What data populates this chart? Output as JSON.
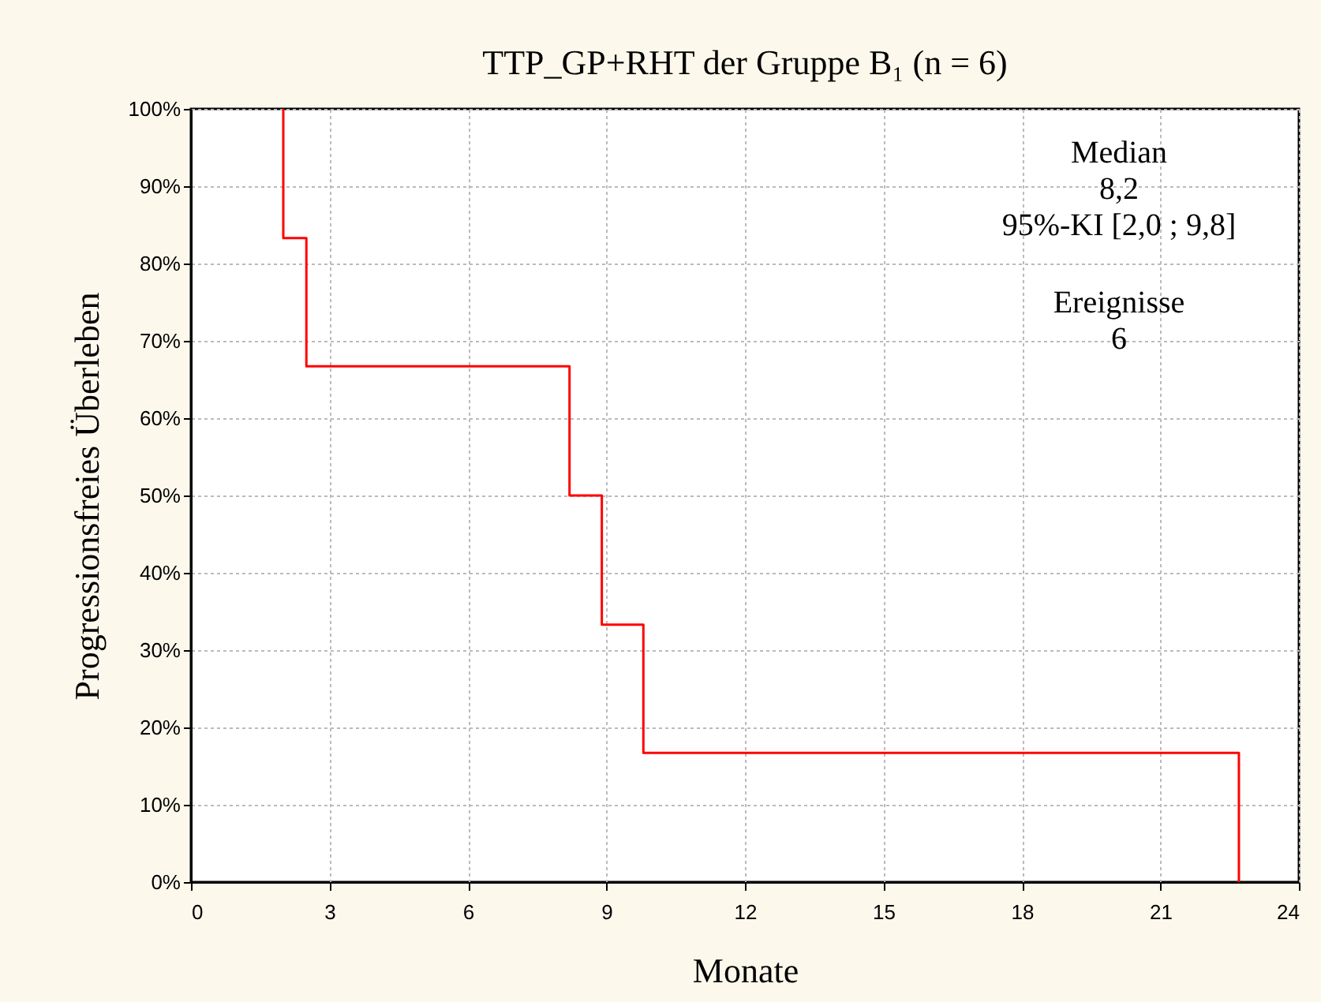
{
  "chart_data": {
    "type": "step",
    "title": "TTP_GP+RHT der Gruppe B₁ (n = 6)",
    "xlabel": "Monate",
    "ylabel": "Progressionsfreies Überleben",
    "x": [
      2.0,
      2.0,
      2.5,
      8.2,
      8.9,
      9.8,
      22.7
    ],
    "series": [
      {
        "color": "#ff0000",
        "values": [
          100,
          83.3,
          66.7,
          50,
          33.3,
          16.7,
          0
        ]
      }
    ],
    "xlim": [
      0,
      24
    ],
    "xticks": [
      0,
      3,
      6,
      9,
      12,
      15,
      18,
      21,
      24
    ],
    "ylim": [
      0,
      100
    ],
    "yticks": [
      {
        "value": 0,
        "label": "0%"
      },
      {
        "value": 10,
        "label": "10%"
      },
      {
        "value": 20,
        "label": "20%"
      },
      {
        "value": 30,
        "label": "30%"
      },
      {
        "value": 40,
        "label": "40%"
      },
      {
        "value": 50,
        "label": "50%"
      },
      {
        "value": 60,
        "label": "60%"
      },
      {
        "value": 70,
        "label": "70%"
      },
      {
        "value": 80,
        "label": "80%"
      },
      {
        "value": 90,
        "label": "90%"
      },
      {
        "value": 100,
        "label": "100%"
      }
    ],
    "grid": true,
    "marker": "none",
    "line_style": "solid",
    "annotations": [
      "Median\n8,2\n95%-KI [2,0 ; 9,8]",
      "Ereignisse\n6"
    ]
  }
}
